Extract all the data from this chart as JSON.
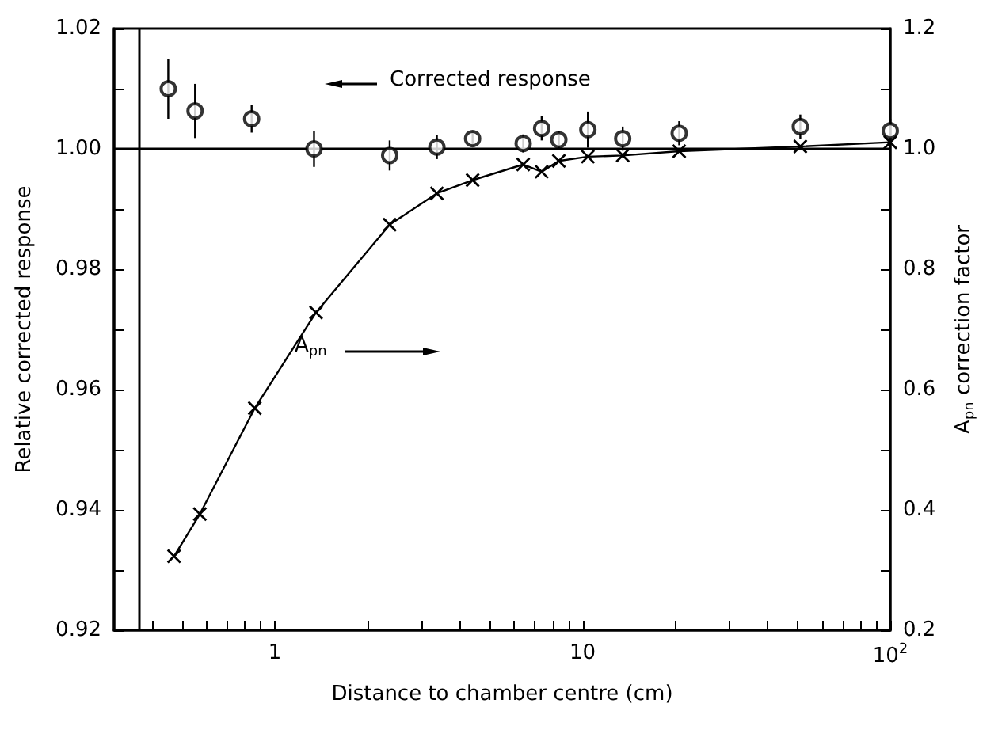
{
  "chart_data": {
    "type": "scatter",
    "xlabel": "Distance to chamber centre (cm)",
    "ylabel": "Relative corrected response",
    "y2label": "A$_{pn}$ correction factor",
    "annotations": [
      "Corrected response",
      "A$_{pn}$"
    ],
    "log": "x",
    "grid": false,
    "xlim": [
      0.3,
      100
    ],
    "xticks": [
      {
        "value": 0.4,
        "label": null
      },
      {
        "value": 0.5,
        "label": null
      },
      {
        "value": 0.6,
        "label": null
      },
      {
        "value": 0.7,
        "label": null
      },
      {
        "value": 0.8,
        "label": null
      },
      {
        "value": 0.9,
        "label": null
      },
      1,
      {
        "value": 2,
        "label": null
      },
      {
        "value": 3,
        "label": null
      },
      {
        "value": 4,
        "label": null
      },
      {
        "value": 5,
        "label": null
      },
      {
        "value": 6,
        "label": null
      },
      {
        "value": 7,
        "label": null
      },
      {
        "value": 8,
        "label": null
      },
      {
        "value": 9,
        "label": null
      },
      10,
      {
        "value": 20,
        "label": null
      },
      {
        "value": 30,
        "label": null
      },
      {
        "value": 40,
        "label": null
      },
      {
        "value": 50,
        "label": null
      },
      {
        "value": 60,
        "label": null
      },
      {
        "value": 70,
        "label": null
      },
      {
        "value": 80,
        "label": null
      },
      {
        "value": 90,
        "label": null
      },
      {
        "value": 100,
        "label": "10$^{2}$"
      }
    ],
    "ylim": [
      0.92,
      1.02
    ],
    "yticks": [
      0.92,
      {
        "value": 0.93,
        "label": null
      },
      0.94,
      {
        "value": 0.95,
        "label": null
      },
      0.96,
      {
        "value": 0.97,
        "label": null
      },
      0.98,
      {
        "value": 0.99,
        "label": null
      },
      {
        "value": 1,
        "label": "1.00"
      },
      {
        "value": 1.01,
        "label": null
      },
      {
        "value": 1.02,
        "label": "1.02"
      }
    ],
    "y2lim": [
      0.2,
      1.2
    ],
    "y2ticks": [
      0.2,
      {
        "value": 0.3,
        "label": null
      },
      0.4,
      {
        "value": 0.5,
        "label": null
      },
      0.6,
      {
        "value": 0.7,
        "label": null
      },
      0.8,
      {
        "value": 0.9,
        "label": null
      },
      {
        "value": 1,
        "label": "1.0"
      },
      {
        "value": 1.1,
        "label": null
      },
      1.2
    ],
    "ref_lines": [
      {
        "axis": "y",
        "value": 1.0,
        "color": "#000000"
      },
      {
        "axis": "x",
        "value": 0.36,
        "color": "#000000"
      }
    ],
    "series": [
      {
        "color": "#000000",
        "marker": "circle",
        "x": [
          0.45,
          0.55,
          0.84,
          1.34,
          2.36,
          3.36,
          4.39,
          6.41,
          7.36,
          8.37,
          10.4,
          13.5,
          20.6,
          51,
          100
        ],
        "values": [
          1.01,
          1.0063,
          1.005,
          1.0,
          0.9989,
          1.0003,
          1.0017,
          1.0009,
          1.0034,
          1.0015,
          1.0032,
          1.0017,
          1.0026,
          1.0037,
          1.003
        ],
        "errors": [
          0.005,
          0.0045,
          0.0023,
          0.003,
          0.0025,
          0.002,
          0.0012,
          0.0015,
          0.002,
          0.0015,
          0.003,
          0.002,
          0.002,
          0.002,
          0.002
        ]
      },
      {
        "type": "line",
        "axis": "y2",
        "color": "#000000",
        "marker": "cross",
        "line_style": "solid",
        "x": [
          0.47,
          0.57,
          0.86,
          1.36,
          2.36,
          3.36,
          4.39,
          6.41,
          7.36,
          8.37,
          10.4,
          13.5,
          20.6,
          51,
          100
        ],
        "values": [
          0.323,
          0.393,
          0.569,
          0.728,
          0.874,
          0.926,
          0.948,
          0.974,
          0.962,
          0.98,
          0.987,
          0.989,
          0.996,
          1.004,
          1.011
        ]
      }
    ]
  }
}
